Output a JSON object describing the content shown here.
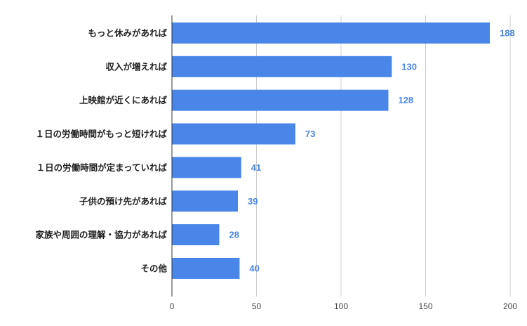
{
  "chart_data": {
    "type": "bar",
    "orientation": "horizontal",
    "categories": [
      "もっと休みがあれば",
      "収入が増えれば",
      "上映館が近くにあれば",
      "１日の労働時間がもっと短ければ",
      "１日の労働時間が定まっていれば",
      "子供の預け先があれば",
      "家族や周囲の理解・協力があれば",
      "その他"
    ],
    "values": [
      188,
      130,
      128,
      73,
      41,
      39,
      28,
      40
    ],
    "data_labels": [
      "188",
      "130",
      "128",
      "73",
      "41",
      "39",
      "28",
      "40"
    ],
    "xlim": [
      0,
      200
    ],
    "x_ticks": [
      0,
      50,
      100,
      150,
      200
    ],
    "x_tick_labels": [
      "0",
      "50",
      "100",
      "150",
      "200"
    ],
    "grid": true,
    "legend": "none",
    "title": "",
    "xlabel": "",
    "ylabel": "",
    "colors": {
      "bar": "#4a86e8",
      "data_label": "#4a86e8",
      "grid": "#cccccc",
      "axis": "#333333"
    }
  }
}
